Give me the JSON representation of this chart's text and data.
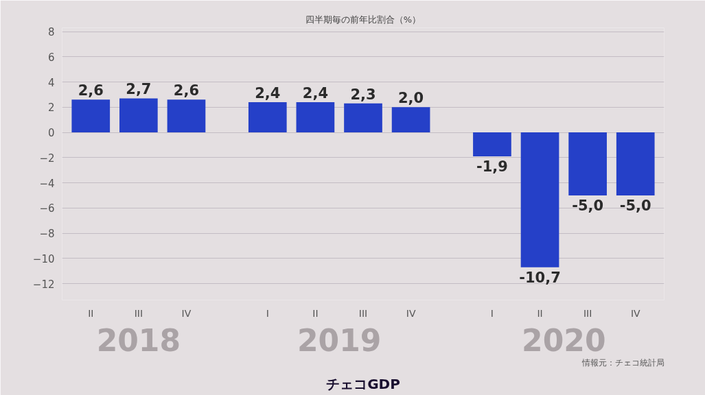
{
  "chart_data": {
    "type": "bar",
    "title": "四半期毎の前年比割合（%）",
    "categories": [
      "II",
      "III",
      "IV",
      "I",
      "II",
      "III",
      "IV",
      "I",
      "II",
      "III",
      "IV"
    ],
    "values": [
      2.6,
      2.7,
      2.6,
      2.4,
      2.4,
      2.3,
      2.0,
      -1.9,
      -10.7,
      -5.0,
      -5.0
    ],
    "value_labels": [
      "2,6",
      "2,7",
      "2,6",
      "2,4",
      "2,4",
      "2,3",
      "2,0",
      "-1,9",
      "-10,7",
      "-5,0",
      "-5,0"
    ],
    "color": "#2540c8",
    "ylim": [
      -13.3,
      8.3
    ],
    "yticks": [
      -12,
      -10,
      -8,
      -6,
      -4,
      -2,
      0,
      2,
      4,
      6,
      8
    ],
    "grid": "y",
    "annotations": [
      "2018",
      "2019",
      "2020",
      "チェコGDP",
      "情報元：チェコ統計局"
    ]
  }
}
